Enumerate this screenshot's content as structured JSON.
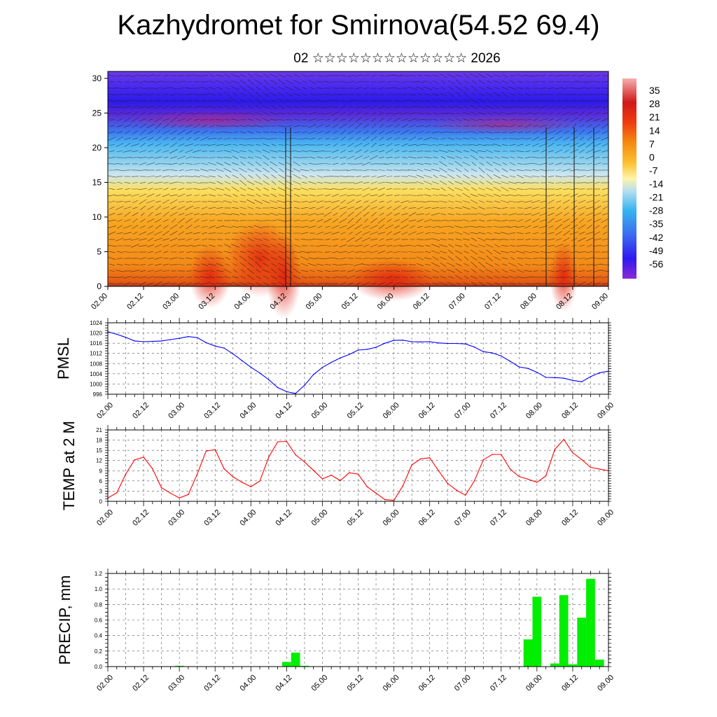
{
  "title": "Kazhydromet for Smirnova(54.52 69.4)",
  "subtitle": "02 ☆☆☆☆☆☆☆☆☆☆☆☆☆ 2026",
  "colors": {
    "pmsl": "#0000ff",
    "temp": "#ff0000",
    "precip": "#00ee00"
  },
  "chart_data": [
    {
      "type": "heatmap",
      "x_tick_labels": [
        "02.00",
        "02.12",
        "03.00",
        "03.12",
        "04.00",
        "04.12",
        "05.00",
        "05.12",
        "06.00",
        "06.12",
        "07.00",
        "07.12",
        "08.00",
        "08.12",
        "09.00"
      ],
      "y_tick_labels": [
        "0",
        "5",
        "10",
        "15",
        "20",
        "25",
        "30"
      ],
      "ylim": [
        0,
        31
      ],
      "colorbar_labels": [
        "35",
        "28",
        "21",
        "14",
        "7",
        "0",
        "-7",
        "-14",
        "-21",
        "-28",
        "-35",
        "-42",
        "-49",
        "-56"
      ],
      "colorbar_range": [
        -63,
        42
      ],
      "overlay": "wind vectors"
    },
    {
      "type": "line",
      "ylabel": "PMSL",
      "ylim": [
        996,
        1024
      ],
      "y_tick_labels": [
        "996",
        "1000",
        "1004",
        "1008",
        "1012",
        "1016",
        "1020",
        "1024"
      ],
      "x_tick_labels": [
        "02.00",
        "02.12",
        "03.00",
        "03.12",
        "04.00",
        "04.12",
        "05.00",
        "05.12",
        "06.00",
        "06.12",
        "07.00",
        "07.12",
        "08.00",
        "08.12",
        "09.00"
      ],
      "x_hours": [
        0,
        3,
        6,
        9,
        12,
        15,
        18,
        21,
        24,
        27,
        30,
        33,
        36,
        39,
        42,
        45,
        48,
        51,
        54,
        57,
        60,
        63,
        66,
        69,
        72,
        75,
        78,
        81,
        84,
        87,
        90,
        93,
        96,
        99,
        102,
        105,
        108,
        111,
        114,
        117,
        120,
        123,
        126,
        129,
        132,
        135,
        138,
        141,
        144,
        147,
        150,
        153,
        156,
        159,
        162,
        165,
        168
      ],
      "values": [
        1020.5,
        1019.5,
        1018.3,
        1016.9,
        1016.6,
        1016.7,
        1016.9,
        1017.4,
        1017.9,
        1018.6,
        1018.2,
        1016.2,
        1014.9,
        1014.1,
        1011.8,
        1009.2,
        1006.6,
        1004.3,
        1001.7,
        998.6,
        997.0,
        996.3,
        999.5,
        1003.7,
        1006.5,
        1008.5,
        1010.2,
        1011.6,
        1013.3,
        1013.6,
        1014.4,
        1016.0,
        1017.1,
        1017.2,
        1016.6,
        1016.5,
        1016.6,
        1016.1,
        1015.9,
        1015.9,
        1015.7,
        1014.5,
        1012.7,
        1012.2,
        1011.0,
        1008.9,
        1006.7,
        1006.1,
        1004.6,
        1002.6,
        1002.5,
        1002.3,
        1001.4,
        1000.9,
        1002.9,
        1004.4,
        1005.0
      ]
    },
    {
      "type": "line",
      "ylabel": "TEMP at 2 M",
      "ylim": [
        0,
        21
      ],
      "y_tick_labels": [
        "0",
        "3",
        "6",
        "9",
        "12",
        "15",
        "18",
        "21"
      ],
      "x_tick_labels": [
        "02.00",
        "02.12",
        "03.00",
        "03.12",
        "04.00",
        "04.12",
        "05.00",
        "05.12",
        "06.00",
        "06.12",
        "07.00",
        "07.12",
        "08.00",
        "08.12",
        "09.00"
      ],
      "x_hours": [
        0,
        3,
        6,
        9,
        12,
        15,
        18,
        21,
        24,
        27,
        30,
        33,
        36,
        39,
        42,
        45,
        48,
        51,
        54,
        57,
        60,
        63,
        66,
        69,
        72,
        75,
        78,
        81,
        84,
        87,
        90,
        93,
        96,
        99,
        102,
        105,
        108,
        111,
        114,
        117,
        120,
        123,
        126,
        129,
        132,
        135,
        138,
        141,
        144,
        147,
        150,
        153,
        156,
        159,
        162,
        165,
        168
      ],
      "values": [
        1.0,
        2.5,
        8.0,
        12.2,
        13.0,
        9.6,
        4.0,
        2.4,
        1.0,
        2.0,
        8.0,
        14.8,
        15.2,
        9.6,
        7.2,
        5.6,
        4.3,
        6.0,
        13.0,
        17.5,
        17.6,
        13.7,
        11.6,
        9.1,
        6.6,
        7.7,
        6.1,
        8.4,
        8.0,
        4.3,
        2.4,
        0.5,
        0.3,
        4.5,
        10.7,
        12.5,
        12.8,
        9.0,
        5.3,
        3.3,
        1.8,
        6.0,
        12.2,
        13.8,
        13.8,
        9.5,
        7.3,
        6.5,
        5.6,
        7.5,
        15.3,
        18.2,
        14.3,
        12.3,
        10.0,
        9.5,
        9.0
      ]
    },
    {
      "type": "bar",
      "ylabel": "PRECIP, mm",
      "ylim": [
        0,
        1.2
      ],
      "y_tick_labels": [
        "0.0",
        "0.2",
        "0.4",
        "0.6",
        "0.8",
        "1.0",
        "1.2"
      ],
      "x_tick_labels": [
        "02.00",
        "02.12",
        "03.00",
        "03.12",
        "04.00",
        "04.12",
        "05.00",
        "05.12",
        "06.00",
        "06.12",
        "07.00",
        "07.12",
        "08.00",
        "08.12",
        "09.00"
      ],
      "x_hours": [
        0,
        3,
        6,
        9,
        12,
        15,
        18,
        21,
        24,
        27,
        30,
        33,
        36,
        39,
        42,
        45,
        48,
        51,
        54,
        57,
        60,
        63,
        66,
        69,
        72,
        75,
        78,
        81,
        84,
        87,
        90,
        93,
        96,
        99,
        102,
        105,
        108,
        111,
        114,
        117,
        120,
        123,
        126,
        129,
        132,
        135,
        138,
        141,
        144,
        147,
        150,
        153,
        156,
        159,
        162,
        165,
        168
      ],
      "values": [
        0,
        0,
        0,
        0,
        0,
        0,
        0,
        0,
        0.01,
        0,
        0,
        0,
        0,
        0,
        0,
        0,
        0,
        0,
        0,
        0,
        0.06,
        0.18,
        0.01,
        0,
        0,
        0,
        0,
        0,
        0,
        0,
        0,
        0,
        0,
        0,
        0,
        0,
        0,
        0,
        0,
        0,
        0,
        0,
        0,
        0,
        0,
        0,
        0,
        0.35,
        0.9,
        0,
        0.04,
        0.92,
        0.03,
        0.63,
        1.13,
        0.09,
        0
      ]
    }
  ]
}
